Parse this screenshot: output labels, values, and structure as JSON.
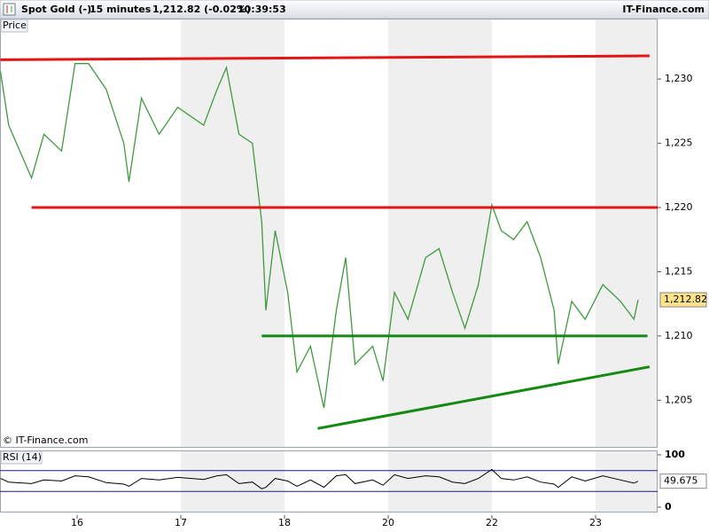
{
  "header": {
    "instrument": "Spot Gold (-)",
    "interval": "15 minutes",
    "quote": "1,212.82 (-0.02%)",
    "time": "10:39:53",
    "brand": "IT-Finance.com"
  },
  "chart_data": [
    {
      "type": "line",
      "title": "Price",
      "watermark": "© IT-Finance.com",
      "xlim": [
        -0.744,
        5.598
      ],
      "xticks": [
        {
          "value": 0,
          "label": "16"
        },
        {
          "value": 1,
          "label": "17"
        },
        {
          "value": 2,
          "label": "18"
        },
        {
          "value": 3,
          "label": "20"
        },
        {
          "value": 4,
          "label": "22"
        },
        {
          "value": 5,
          "label": "23"
        }
      ],
      "ylim": [
        1201.3,
        1234.7
      ],
      "yticks": [
        {
          "value": 1205,
          "label": "1,205"
        },
        {
          "value": 1210,
          "label": "1,210"
        },
        {
          "value": 1215,
          "label": "1,215"
        },
        {
          "value": 1220,
          "label": "1,220"
        },
        {
          "value": 1225,
          "label": "1,225"
        },
        {
          "value": 1230,
          "label": "1,230"
        }
      ],
      "series": [
        {
          "name": "Spot Gold",
          "color": "#3f9a3f",
          "x": [
            -0.74,
            -0.66,
            -0.44,
            -0.32,
            -0.15,
            -0.02,
            0.11,
            0.28,
            0.45,
            0.5,
            0.62,
            0.79,
            0.97,
            1.22,
            1.35,
            1.44,
            1.56,
            1.69,
            1.78,
            1.82,
            1.91,
            2.03,
            2.12,
            2.25,
            2.38,
            2.5,
            2.59,
            2.68,
            2.85,
            2.95,
            3.06,
            3.19,
            3.36,
            3.49,
            3.62,
            3.74,
            3.87,
            4.0,
            4.09,
            4.21,
            4.34,
            4.47,
            4.6,
            4.64,
            4.77,
            4.9,
            5.07,
            5.24,
            5.37,
            5.41
          ],
          "values": [
            1230.6,
            1226.4,
            1222.3,
            1225.7,
            1224.4,
            1231.2,
            1231.2,
            1229.2,
            1225.0,
            1222.0,
            1228.5,
            1225.7,
            1227.8,
            1226.4,
            1229.2,
            1230.9,
            1225.7,
            1225.0,
            1218.9,
            1212.0,
            1218.2,
            1213.4,
            1207.2,
            1209.2,
            1204.4,
            1212.0,
            1216.1,
            1207.8,
            1209.2,
            1206.5,
            1213.4,
            1211.3,
            1216.1,
            1216.8,
            1213.4,
            1210.6,
            1214.0,
            1220.2,
            1218.2,
            1217.5,
            1218.9,
            1216.1,
            1212.0,
            1207.8,
            1212.7,
            1211.3,
            1214.0,
            1212.7,
            1211.3,
            1212.82
          ]
        }
      ],
      "last_value": {
        "value": 1212.82,
        "label": "1,212.82"
      },
      "lines": [
        {
          "color": "#e31414",
          "x": [
            -0.74,
            5.52
          ],
          "y": [
            1231.5,
            1231.8
          ]
        },
        {
          "color": "#e31414",
          "x": [
            -0.44,
            5.6
          ],
          "y": [
            1220.0,
            1220.0
          ]
        },
        {
          "color": "#138a13",
          "x": [
            1.78,
            5.5
          ],
          "y": [
            1210.0,
            1210.0
          ]
        },
        {
          "color": "#138a13",
          "x": [
            2.32,
            5.52
          ],
          "y": [
            1202.8,
            1207.6
          ]
        }
      ]
    },
    {
      "type": "line",
      "title": "RSI (14)",
      "xlim": [
        -0.744,
        5.598
      ],
      "ylim": [
        -10.2,
        108.5
      ],
      "yticks": [
        0,
        100
      ],
      "hlines": [
        30,
        70
      ],
      "hline_color": "#1a1a8c",
      "series": [
        {
          "name": "RSI",
          "color": "#000000",
          "x": [
            -0.74,
            -0.66,
            -0.44,
            -0.32,
            -0.15,
            -0.02,
            0.11,
            0.28,
            0.45,
            0.5,
            0.62,
            0.79,
            0.97,
            1.22,
            1.35,
            1.44,
            1.56,
            1.69,
            1.78,
            1.82,
            1.91,
            2.03,
            2.12,
            2.25,
            2.38,
            2.5,
            2.59,
            2.68,
            2.85,
            2.95,
            3.06,
            3.19,
            3.36,
            3.49,
            3.62,
            3.74,
            3.87,
            4.0,
            4.09,
            4.21,
            4.34,
            4.47,
            4.6,
            4.64,
            4.77,
            4.9,
            5.07,
            5.24,
            5.37,
            5.41
          ],
          "values": [
            55,
            48,
            45,
            52,
            50,
            60,
            58,
            47,
            44,
            40,
            55,
            52,
            57,
            53,
            60,
            62,
            45,
            48,
            35,
            38,
            55,
            50,
            40,
            52,
            38,
            60,
            62,
            45,
            52,
            42,
            62,
            55,
            60,
            58,
            48,
            45,
            55,
            72,
            55,
            52,
            58,
            48,
            44,
            38,
            58,
            50,
            60,
            52,
            46,
            49.675
          ]
        }
      ],
      "last_value": {
        "value": 49.675,
        "label": "49.675"
      }
    }
  ]
}
